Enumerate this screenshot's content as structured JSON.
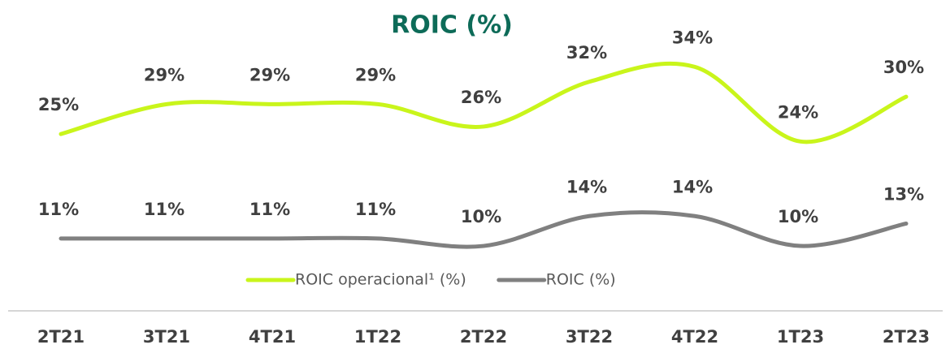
{
  "chart_data": {
    "type": "line",
    "title": "ROIC (%)",
    "categories": [
      "2T21",
      "3T21",
      "4T21",
      "1T22",
      "2T22",
      "3T22",
      "4T22",
      "1T23",
      "2T23"
    ],
    "series": [
      {
        "name": "ROIC operacional¹ (%)",
        "color": "#c9f51b",
        "values": [
          25,
          29,
          29,
          29,
          26,
          32,
          34,
          24,
          30
        ],
        "value_labels": [
          "25%",
          "29%",
          "29%",
          "29%",
          "26%",
          "32%",
          "34%",
          "24%",
          "30%"
        ]
      },
      {
        "name": "ROIC (%)",
        "color": "#808080",
        "values": [
          11,
          11,
          11,
          11,
          10,
          14,
          14,
          10,
          13
        ],
        "value_labels": [
          "11%",
          "11%",
          "11%",
          "11%",
          "10%",
          "14%",
          "14%",
          "10%",
          "13%"
        ]
      }
    ],
    "ylim": [
      0,
      36
    ],
    "legend": "bottom"
  }
}
